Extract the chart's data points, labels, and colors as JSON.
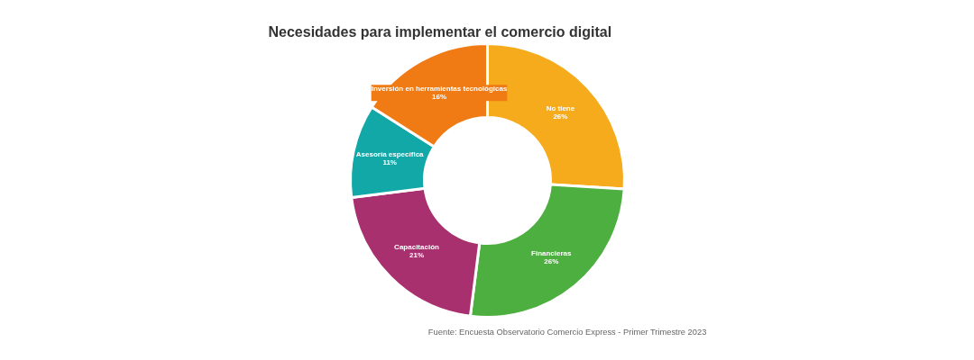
{
  "chart_data": {
    "type": "donut",
    "title": "Necesidades para implementar el comercio digital",
    "categories": [
      "No tiene",
      "Financieras",
      "Capacitación",
      "Asesoría específica",
      "Inversión en herramientas tecnológicas"
    ],
    "values": [
      26,
      26,
      21,
      11,
      16
    ],
    "colors": [
      "#f6ab1c",
      "#4daf3f",
      "#a8306e",
      "#12a8a8",
      "#f07b14"
    ],
    "value_labels": [
      "26%",
      "26%",
      "21%",
      "11%",
      "16%"
    ],
    "annotations": [
      "Fuente: Encuesta Observatorio Comercio Express - Primer Trimestre 2023"
    ],
    "legend": false
  }
}
